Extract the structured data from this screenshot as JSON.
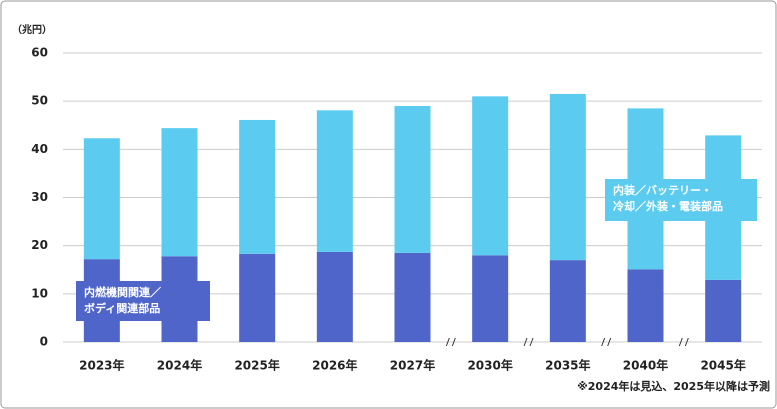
{
  "chart_data": {
    "type": "stacked_bar",
    "y_label": "（兆円）",
    "categories": [
      "2023年",
      "2024年",
      "2025年",
      "2026年",
      "2027年",
      "2030年",
      "2035年",
      "2040年",
      "2045年"
    ],
    "series": [
      {
        "name": "内燃機関関連／\nボディ関連部品",
        "color": "#4f65c9",
        "values": [
          17.2,
          17.8,
          18.3,
          18.7,
          18.5,
          18.0,
          17.0,
          15.1,
          12.9
        ]
      },
      {
        "name": "内装／バッテリー・\n冷却／外装・電装部品",
        "color": "#5ccbf0",
        "values": [
          25.1,
          26.6,
          27.8,
          29.4,
          30.5,
          33.0,
          34.5,
          33.4,
          30.0
        ]
      }
    ],
    "ylim": [
      0,
      60
    ],
    "yticks": [
      0,
      10,
      20,
      30,
      40,
      50,
      60
    ],
    "grid": true,
    "footnote": "※2024年は見込、2025年以降は予測"
  }
}
